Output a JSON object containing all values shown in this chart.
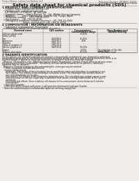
{
  "bg_color": "#f0ede8",
  "header_left": "Product Name: Lithium Ion Battery Cell",
  "header_right_line1": "Reference Number: BR/ANSC-00015",
  "header_right_line2": "Established / Revision: Dec.7.2010",
  "title": "Safety data sheet for chemical products (SDS)",
  "section1_title": "1 PRODUCT AND COMPANY IDENTIFICATION",
  "section1_lines": [
    "  • Product name: Lithium Ion Battery Cell",
    "  • Product code: Cylindrical-type cell",
    "    (UF 18650U, UF 18650L, UF 18650A)",
    "  • Company name:    Sanyo Electric Co., Ltd., Mobile Energy Company",
    "  • Address:          2001 Kamikosaka, Sumoto City, Hyogo, Japan",
    "  • Telephone number:   +81-799-26-4111",
    "  • Fax number:   +81-799-26-4120",
    "  • Emergency telephone number (daytime): +81-799-26-2662",
    "                              (Night and holiday): +81-799-26-4104"
  ],
  "section2_title": "2 COMPOSITION / INFORMATION ON INGREDIENTS",
  "section2_sub1": "  • Substance or preparation: Preparation",
  "section2_sub2": "  • Information about the chemical nature of product:",
  "table_col_names": [
    "Chemical name",
    "CAS number",
    "Concentration /\nConcentration range",
    "Classification and\nhazard labeling"
  ],
  "chemicals": [
    "Lithium cobalt oxide",
    "(LiMn/Co/PO4)",
    "Iron",
    "Aluminum",
    "Graphite",
    "(Rate of graphite-1)",
    "(At the graphite-2)",
    "Copper",
    "Organic electrolyte"
  ],
  "cas_nums": [
    "-",
    "-",
    "7439-89-6",
    "7429-90-5",
    "7782-42-5",
    "7782-43-4",
    "7440-50-8",
    "-",
    "-"
  ],
  "concs": [
    "30-60%",
    "-",
    "15-25%",
    "2-5%",
    "-",
    "-",
    "10-20%",
    "5-15%",
    "10-20%"
  ],
  "classi": [
    "-",
    "",
    "-",
    "-",
    "-",
    "",
    "",
    "Sensitization of the skin",
    "Inflammable liquid"
  ],
  "classi2": [
    "",
    "",
    "",
    "",
    "",
    "",
    "",
    "group No.2",
    ""
  ],
  "section3_title": "3 HAZARDS IDENTIFICATION",
  "s3_lines": [
    "For the battery cell, chemical materials are stored in a hermetically sealed metal case, designed to withstand",
    "temperatures generated by electrochemical reactions during normal use. As a result, during normal use, there is no",
    "physical danger of ignition or explosion and there no danger of hazardous materials leakage.",
    "  However, if exposed to a fire, added mechanical shocks, decomposes, contact internal short-circuit may cause,",
    "the gas maybe vented (or operated). The battery cell case will be breached of fire-patterns, hazardous",
    "materials may be released.",
    "  Moreover, if heated strongly by the surrounding fire, some gas may be emitted."
  ],
  "hazard_sub1": "  • Most important hazard and effects:",
  "hazard_h_lines": [
    "    Human health effects:",
    "      Inhalation: The release of the electrolyte has an anesthetic action and stimulates to respiratory tract.",
    "      Skin contact: The release of the electrolyte stimulates a skin. The electrolyte skin contact causes a",
    "      sore and stimulation on the skin.",
    "      Eye contact: The release of the electrolyte stimulates eyes. The electrolyte eye contact causes a sore",
    "      and stimulation on the eye. Especially, a substance that causes a strong inflammation of the eyes is",
    "      contained.",
    "      Environmental effects: Since a battery cell remains in the environment, do not throw out it into the",
    "      environment."
  ],
  "hazard_sub2": "  • Specific hazards:",
  "hazard_s_lines": [
    "    If the electrolyte contacts with water, it will generate detrimental hydrogen fluoride.",
    "    Since the seal-electrolyte is inflammable liquid, do not bring close to fire."
  ],
  "footer_line": "- 1 -"
}
